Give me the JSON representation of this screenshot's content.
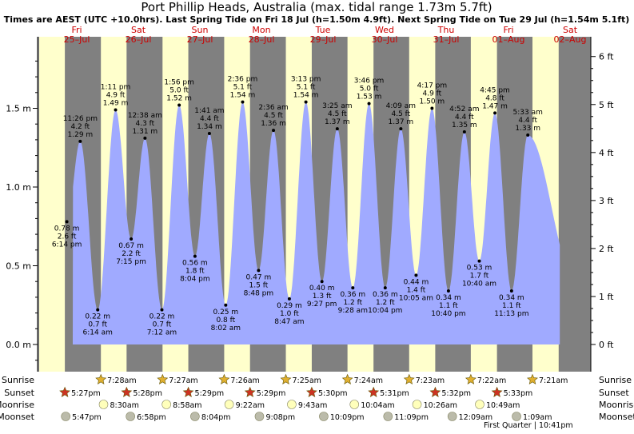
{
  "chart_data": {
    "type": "area",
    "title": "Port Phillip Heads, Australia (max. tidal range 1.73m 5.7ft)",
    "subtitle": "Times are AEST (UTC +10.0hrs). Last Spring Tide on Fri 18 Jul (h=1.50m 4.9ft). Next Spring Tide on Tue 29 Jul (h=1.54m 5.1ft)",
    "ylim_m": [
      -0.2,
      1.9
    ],
    "left_ticks": [
      "0.0 m",
      "0.5 m",
      "1.0 m",
      "1.5 m"
    ],
    "left_tick_values": [
      0,
      0.5,
      1.0,
      1.5
    ],
    "right_ticks": [
      "0 ft",
      "1 ft",
      "2 ft",
      "3 ft",
      "4 ft",
      "5 ft",
      "6 ft"
    ],
    "right_tick_values_ft": [
      0,
      1,
      2,
      3,
      4,
      5,
      6
    ],
    "days": [
      {
        "dow": "Fri",
        "date": "25–Jul"
      },
      {
        "dow": "Sat",
        "date": "26–Jul"
      },
      {
        "dow": "Sun",
        "date": "27–Jul"
      },
      {
        "dow": "Mon",
        "date": "28–Jul"
      },
      {
        "dow": "Tue",
        "date": "29–Jul"
      },
      {
        "dow": "Wed",
        "date": "30–Jul"
      },
      {
        "dow": "Thu",
        "date": "31–Jul"
      },
      {
        "dow": "Fri",
        "date": "01–Aug"
      },
      {
        "dow": "Sat",
        "date": "02–Aug"
      }
    ],
    "tides": [
      {
        "time": "6:14 pm",
        "m": "0.78 m",
        "ft": "2.6 ft",
        "h": 0.78,
        "day": 0,
        "hour": 18.23,
        "type": "low"
      },
      {
        "time": "11:26 pm",
        "m": "1.29 m",
        "ft": "4.2 ft",
        "h": 1.29,
        "day": 0,
        "hour": 23.43,
        "type": "high"
      },
      {
        "time": "6:14 am",
        "m": "0.22 m",
        "ft": "0.7 ft",
        "h": 0.22,
        "day": 1,
        "hour": 6.23,
        "type": "low"
      },
      {
        "time": "1:11 pm",
        "m": "1.49 m",
        "ft": "4.9 ft",
        "h": 1.49,
        "day": 1,
        "hour": 13.18,
        "type": "high"
      },
      {
        "time": "7:15 pm",
        "m": "0.67 m",
        "ft": "2.2 ft",
        "h": 0.67,
        "day": 1,
        "hour": 19.25,
        "type": "low"
      },
      {
        "time": "12:38 am",
        "m": "1.31 m",
        "ft": "4.3 ft",
        "h": 1.31,
        "day": 2,
        "hour": 0.63,
        "type": "high"
      },
      {
        "time": "7:12 am",
        "m": "0.22 m",
        "ft": "0.7 ft",
        "h": 0.22,
        "day": 2,
        "hour": 7.2,
        "type": "low"
      },
      {
        "time": "1:56 pm",
        "m": "1.52 m",
        "ft": "5.0 ft",
        "h": 1.52,
        "day": 2,
        "hour": 13.93,
        "type": "high"
      },
      {
        "time": "8:04 pm",
        "m": "0.56 m",
        "ft": "1.8 ft",
        "h": 0.56,
        "day": 2,
        "hour": 20.07,
        "type": "low"
      },
      {
        "time": "1:41 am",
        "m": "1.34 m",
        "ft": "4.4 ft",
        "h": 1.34,
        "day": 3,
        "hour": 1.68,
        "type": "high"
      },
      {
        "time": "8:02 am",
        "m": "0.25 m",
        "ft": "0.8 ft",
        "h": 0.25,
        "day": 3,
        "hour": 8.03,
        "type": "low"
      },
      {
        "time": "2:36 pm",
        "m": "1.54 m",
        "ft": "5.1 ft",
        "h": 1.54,
        "day": 3,
        "hour": 14.6,
        "type": "high"
      },
      {
        "time": "8:48 pm",
        "m": "0.47 m",
        "ft": "1.5 ft",
        "h": 0.47,
        "day": 3,
        "hour": 20.8,
        "type": "low"
      },
      {
        "time": "2:36 am",
        "m": "1.36 m",
        "ft": "4.5 ft",
        "h": 1.36,
        "day": 4,
        "hour": 2.6,
        "type": "high"
      },
      {
        "time": "8:47 am",
        "m": "0.29 m",
        "ft": "1.0 ft",
        "h": 0.29,
        "day": 4,
        "hour": 8.78,
        "type": "low"
      },
      {
        "time": "3:13 pm",
        "m": "1.54 m",
        "ft": "5.1 ft",
        "h": 1.54,
        "day": 4,
        "hour": 15.22,
        "type": "high"
      },
      {
        "time": "9:27 pm",
        "m": "0.40 m",
        "ft": "1.3 ft",
        "h": 0.4,
        "day": 4,
        "hour": 21.45,
        "type": "low"
      },
      {
        "time": "3:25 am",
        "m": "1.37 m",
        "ft": "4.5 ft",
        "h": 1.37,
        "day": 5,
        "hour": 3.42,
        "type": "high"
      },
      {
        "time": "9:28 am",
        "m": "0.36 m",
        "ft": "1.2 ft",
        "h": 0.36,
        "day": 5,
        "hour": 9.47,
        "type": "low"
      },
      {
        "time": "3:46 pm",
        "m": "1.53 m",
        "ft": "5.0 ft",
        "h": 1.53,
        "day": 5,
        "hour": 15.77,
        "type": "high"
      },
      {
        "time": "10:04 pm",
        "m": "0.36 m",
        "ft": "1.2 ft",
        "h": 0.36,
        "day": 5,
        "hour": 22.07,
        "type": "low"
      },
      {
        "time": "4:09 am",
        "m": "1.37 m",
        "ft": "4.5 ft",
        "h": 1.37,
        "day": 6,
        "hour": 4.15,
        "type": "high"
      },
      {
        "time": "10:05 am",
        "m": "0.44 m",
        "ft": "1.4 ft",
        "h": 0.44,
        "day": 6,
        "hour": 10.08,
        "type": "low"
      },
      {
        "time": "4:17 pm",
        "m": "1.50 m",
        "ft": "4.9 ft",
        "h": 1.5,
        "day": 6,
        "hour": 16.28,
        "type": "high"
      },
      {
        "time": "10:40 pm",
        "m": "0.34 m",
        "ft": "1.1 ft",
        "h": 0.34,
        "day": 6,
        "hour": 22.67,
        "type": "low"
      },
      {
        "time": "4:52 am",
        "m": "1.35 m",
        "ft": "4.4 ft",
        "h": 1.35,
        "day": 7,
        "hour": 4.87,
        "type": "high"
      },
      {
        "time": "10:40 am",
        "m": "0.53 m",
        "ft": "1.7 ft",
        "h": 0.53,
        "day": 7,
        "hour": 10.67,
        "type": "low"
      },
      {
        "time": "4:45 pm",
        "m": "1.47 m",
        "ft": "4.8 ft",
        "h": 1.47,
        "day": 7,
        "hour": 16.75,
        "type": "high"
      },
      {
        "time": "11:13 pm",
        "m": "0.34 m",
        "ft": "1.1 ft",
        "h": 0.34,
        "day": 7,
        "hour": 23.22,
        "type": "low"
      },
      {
        "time": "5:33 am",
        "m": "1.33 m",
        "ft": "4.4 ft",
        "h": 1.33,
        "day": 8,
        "hour": 5.55,
        "type": "high"
      }
    ],
    "sunrise": {
      "label": "Sunrise",
      "times": [
        "7:28am",
        "7:27am",
        "7:26am",
        "7:25am",
        "7:24am",
        "7:23am",
        "7:22am",
        "7:21am"
      ],
      "days": [
        1,
        2,
        3,
        4,
        5,
        6,
        7,
        8
      ]
    },
    "sunset": {
      "label": "Sunset",
      "times": [
        "5:27pm",
        "5:28pm",
        "5:29pm",
        "5:29pm",
        "5:30pm",
        "5:31pm",
        "5:32pm",
        "5:33pm"
      ],
      "days": [
        0,
        1,
        2,
        3,
        4,
        5,
        6,
        7
      ]
    },
    "moonrise": {
      "label": "Moonrise",
      "times": [
        "8:30am",
        "8:58am",
        "9:22am",
        "9:43am",
        "10:04am",
        "10:26am",
        "10:49am"
      ],
      "days": [
        1,
        2,
        3,
        4,
        5,
        6,
        7
      ]
    },
    "moonset": {
      "label": "Moonset",
      "times": [
        "5:47pm",
        "6:58pm",
        "8:04pm",
        "9:08pm",
        "10:09pm",
        "11:09pm",
        "12:09am",
        "1:09am"
      ],
      "days": [
        0,
        1,
        2,
        3,
        4,
        5,
        7,
        8
      ]
    },
    "moon_phase": "First Quarter | 10:41pm",
    "colors": {
      "day_bg": "#ffffcc",
      "night_bg": "#808080",
      "water": "#a0aaff",
      "day_label": "#cc0000",
      "sun_star": "#e0b030",
      "sunset_star": "#cc3322",
      "moon_yellow": "#ffffbb",
      "moon_grey": "#bbbbaa"
    }
  }
}
